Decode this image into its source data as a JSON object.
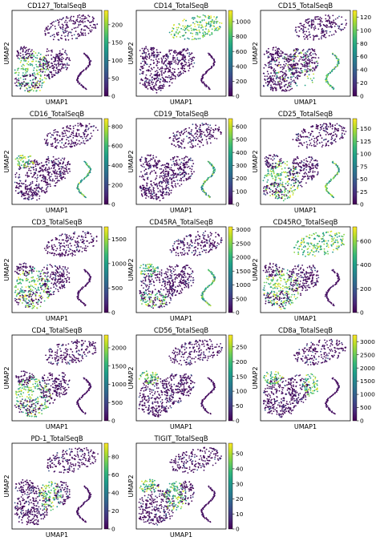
{
  "figure": {
    "x_label": "UMAP1",
    "y_label": "UMAP2",
    "colormap": "viridis",
    "colormap_stops": [
      "#440154",
      "#482878",
      "#3e4989",
      "#31688e",
      "#26828e",
      "#1f9e89",
      "#35b779",
      "#6ece58",
      "#b5de2b",
      "#fde725"
    ]
  },
  "chart_data": [
    {
      "type": "scatter",
      "title": "CD127_TotalSeqB",
      "xlabel": "UMAP1",
      "ylabel": "UMAP2",
      "colorbar": {
        "ticks": [
          0,
          50,
          100,
          150,
          200
        ],
        "range": [
          0,
          240
        ]
      },
      "highlight": [
        "left-cluster"
      ]
    },
    {
      "type": "scatter",
      "title": "CD14_TotalSeqB",
      "xlabel": "UMAP1",
      "ylabel": "UMAP2",
      "colorbar": {
        "ticks": [
          0,
          200,
          400,
          600,
          800,
          1000
        ],
        "range": [
          0,
          1150
        ]
      },
      "highlight": [
        "top-cluster"
      ]
    },
    {
      "type": "scatter",
      "title": "CD15_TotalSeqB",
      "xlabel": "UMAP1",
      "ylabel": "UMAP2",
      "colorbar": {
        "ticks": [
          0,
          20,
          40,
          60,
          80,
          100,
          120
        ],
        "range": [
          0,
          130
        ]
      },
      "highlight": [
        "scattered",
        "curve"
      ]
    },
    {
      "type": "scatter",
      "title": "CD16_TotalSeqB",
      "xlabel": "UMAP1",
      "ylabel": "UMAP2",
      "colorbar": {
        "ticks": [
          0,
          200,
          400,
          600,
          800
        ],
        "range": [
          0,
          880
        ]
      },
      "highlight": [
        "nk-cluster",
        "curve"
      ]
    },
    {
      "type": "scatter",
      "title": "CD19_TotalSeqB",
      "xlabel": "UMAP1",
      "ylabel": "UMAP2",
      "colorbar": {
        "ticks": [
          0,
          100,
          200,
          300,
          400,
          500,
          600
        ],
        "range": [
          0,
          660
        ]
      },
      "highlight": [
        "curve"
      ]
    },
    {
      "type": "scatter",
      "title": "CD25_TotalSeqB",
      "xlabel": "UMAP1",
      "ylabel": "UMAP2",
      "colorbar": {
        "ticks": [
          0,
          25,
          50,
          75,
          100,
          125,
          150
        ],
        "range": [
          0,
          170
        ]
      },
      "highlight": [
        "left-cluster",
        "curve"
      ]
    },
    {
      "type": "scatter",
      "title": "CD3_TotalSeqB",
      "xlabel": "UMAP1",
      "ylabel": "UMAP2",
      "colorbar": {
        "ticks": [
          0,
          500,
          1000,
          1500
        ],
        "range": [
          0,
          1750
        ]
      },
      "highlight": [
        "left-cluster"
      ]
    },
    {
      "type": "scatter",
      "title": "CD45RA_TotalSeqB",
      "xlabel": "UMAP1",
      "ylabel": "UMAP2",
      "colorbar": {
        "ticks": [
          0,
          500,
          1000,
          1500,
          2000,
          2500,
          3000
        ],
        "range": [
          0,
          3100
        ]
      },
      "highlight": [
        "nk-cluster",
        "curve",
        "left-lower"
      ]
    },
    {
      "type": "scatter",
      "title": "CD45RO_TotalSeqB",
      "xlabel": "UMAP1",
      "ylabel": "UMAP2",
      "colorbar": {
        "ticks": [
          0,
          200,
          400,
          600
        ],
        "range": [
          0,
          720
        ]
      },
      "highlight": [
        "left-cluster",
        "top-cluster"
      ]
    },
    {
      "type": "scatter",
      "title": "CD4_TotalSeqB",
      "xlabel": "UMAP1",
      "ylabel": "UMAP2",
      "colorbar": {
        "ticks": [
          0,
          500,
          1000,
          1500,
          2000
        ],
        "range": [
          0,
          2350
        ]
      },
      "highlight": [
        "left-cluster"
      ]
    },
    {
      "type": "scatter",
      "title": "CD56_TotalSeqB",
      "xlabel": "UMAP1",
      "ylabel": "UMAP2",
      "colorbar": {
        "ticks": [
          0,
          50,
          100,
          150,
          200,
          250
        ],
        "range": [
          0,
          290
        ]
      },
      "highlight": [
        "nk-cluster"
      ]
    },
    {
      "type": "scatter",
      "title": "CD8a_TotalSeqB",
      "xlabel": "UMAP1",
      "ylabel": "UMAP2",
      "colorbar": {
        "ticks": [
          0,
          500,
          1000,
          1500,
          2000,
          2500,
          3000
        ],
        "range": [
          0,
          3250
        ]
      },
      "highlight": [
        "right-cluster",
        "nk-cluster"
      ]
    },
    {
      "type": "scatter",
      "title": "PD-1_TotalSeqB",
      "xlabel": "UMAP1",
      "ylabel": "UMAP2",
      "colorbar": {
        "ticks": [
          0,
          20,
          40,
          60,
          80
        ],
        "range": [
          0,
          95
        ]
      },
      "highlight": [
        "center"
      ]
    },
    {
      "type": "scatter",
      "title": "TIGIT_TotalSeqB",
      "xlabel": "UMAP1",
      "ylabel": "UMAP2",
      "colorbar": {
        "ticks": [
          0,
          10,
          20,
          30,
          40,
          50
        ],
        "range": [
          0,
          57
        ]
      },
      "highlight": [
        "nk-cluster",
        "center"
      ]
    }
  ]
}
